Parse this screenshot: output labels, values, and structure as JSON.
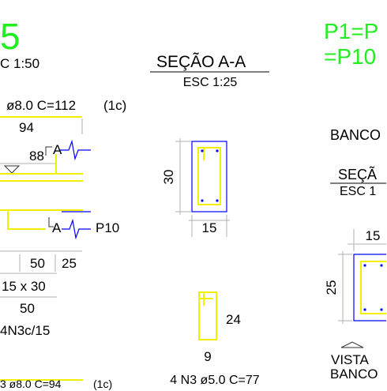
{
  "left_detail": {
    "title_number": "5",
    "scale": "C 1:50",
    "bar_top_spec": "ø8.0 C=112",
    "bar_top_count": "(1c)",
    "dim_94": "94",
    "dim_88": "88",
    "section_mark_top": "A",
    "section_mark_bottom": "A",
    "pillar_label": "P10",
    "dim_50_a": "50",
    "dim_25": "25",
    "beam_size": "15 x 30",
    "dim_50_b": "50",
    "stirrups_spec": "4N3c/15",
    "bar_bottom_spec": "3 ø8.0 C=94",
    "bar_bottom_count": "(1c)"
  },
  "section": {
    "title": "SEÇÃO A-A",
    "scale": "ESC 1:25",
    "height": "30",
    "width": "15",
    "stirrup_height": "24",
    "stirrup_width": "9",
    "stirrup_spec": "4 N3 ø5.0 C=77"
  },
  "right_detail": {
    "title_line1": "P1=P",
    "title_line2": "=P10",
    "bank_label": "BANCO",
    "section_title": "SEÇÃ",
    "section_scale": "ESC 1",
    "width": "15",
    "height": "25",
    "view_line1": "VISTA",
    "view_line2": "BANCO"
  },
  "colors": {
    "title": "#22ee22",
    "rebar": "#f0f000",
    "outline": "#0000ff",
    "dimension": "#b0b0b0",
    "text": "#000000"
  }
}
